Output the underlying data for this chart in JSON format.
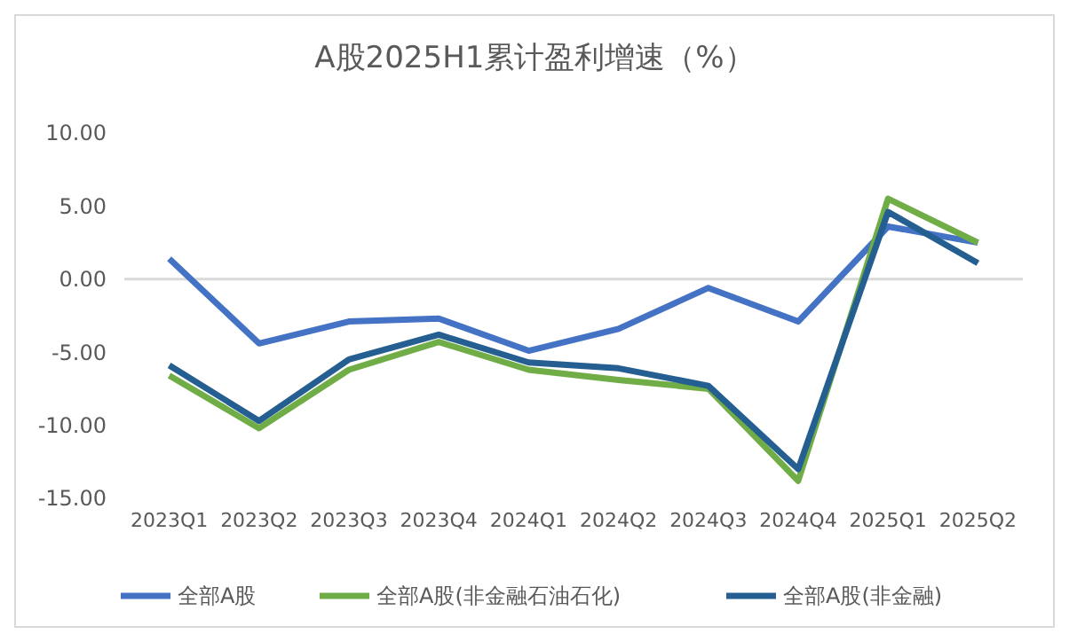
{
  "chart_data": {
    "type": "line",
    "title": "A股2025H1累计盈利增速（%）",
    "categories": [
      "2023Q1",
      "2023Q2",
      "2023Q3",
      "2023Q4",
      "2024Q1",
      "2024Q2",
      "2024Q3",
      "2024Q4",
      "2025Q1",
      "2025Q2"
    ],
    "ylim": [
      -15,
      10
    ],
    "yticks": [
      {
        "value": -15,
        "label": "-15.00"
      },
      {
        "value": -10,
        "label": "-10.00"
      },
      {
        "value": -5,
        "label": "-5.00"
      },
      {
        "value": 0,
        "label": "0.00"
      },
      {
        "value": 5,
        "label": "5.00"
      },
      {
        "value": 10,
        "label": "10.00"
      }
    ],
    "ref_lines": [
      {
        "axis": "y",
        "value": 0,
        "color": "#d9d9d9"
      }
    ],
    "legend": "bottom",
    "grid": false,
    "marker": "none",
    "line_style": "solid",
    "series": [
      {
        "name": "全部A股",
        "color": "#4472c4",
        "values": [
          1.4,
          -4.4,
          -2.9,
          -2.7,
          -4.9,
          -3.4,
          -0.6,
          -2.9,
          3.6,
          2.5
        ]
      },
      {
        "name": "全部A股(非金融石油石化)",
        "color": "#70ad47",
        "values": [
          -6.6,
          -10.2,
          -6.2,
          -4.3,
          -6.2,
          -6.9,
          -7.5,
          -13.8,
          5.5,
          2.5
        ]
      },
      {
        "name": "全部A股(非金融)",
        "color": "#255e91",
        "values": [
          -5.9,
          -9.7,
          -5.5,
          -3.8,
          -5.7,
          -6.1,
          -7.3,
          -13.0,
          4.6,
          1.1
        ]
      }
    ]
  }
}
